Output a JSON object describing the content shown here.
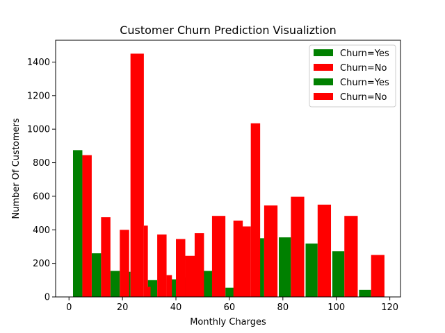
{
  "chart_data": {
    "type": "bar",
    "title": "Customer Churn Prediction Visualiztion",
    "xlabel": "Monthly Charges",
    "ylabel": "Number Of Customers",
    "xlim": [
      -5,
      124
    ],
    "ylim": [
      0,
      1530
    ],
    "xticks": [
      0,
      20,
      40,
      60,
      80,
      100,
      120
    ],
    "yticks": [
      0,
      200,
      400,
      600,
      800,
      1000,
      1200,
      1400
    ],
    "grid": false,
    "legend_position": "top-right",
    "series": [
      {
        "name": "Churn=Yes",
        "color": "#008000",
        "bins": [
          [
            1.5,
            5.0,
            875
          ],
          [
            8.5,
            12.0,
            260
          ],
          [
            15.5,
            19.0,
            155
          ],
          [
            19.5,
            23.0,
            150
          ],
          [
            29.5,
            33.0,
            100
          ],
          [
            37.5,
            41.0,
            105
          ],
          [
            41.5,
            45.0,
            118
          ],
          [
            49.5,
            54.0,
            155
          ],
          [
            58.5,
            63.0,
            55
          ],
          [
            68.5,
            73.0,
            350
          ],
          [
            78.5,
            83.0,
            355
          ],
          [
            88.5,
            93.0,
            318
          ],
          [
            98.5,
            103.0,
            272
          ],
          [
            108.5,
            113.0,
            42
          ]
        ]
      },
      {
        "name": "Churn=No",
        "color": "#ff0000",
        "bins": [
          [
            5.0,
            8.5,
            845
          ],
          [
            12.0,
            15.5,
            475
          ],
          [
            19.0,
            22.5,
            400
          ],
          [
            23.0,
            28.0,
            1450
          ],
          [
            28.0,
            29.5,
            425
          ],
          [
            29.0,
            30.5,
            60
          ],
          [
            33.0,
            36.5,
            372
          ],
          [
            36.5,
            38.5,
            130
          ],
          [
            40.0,
            43.5,
            345
          ],
          [
            43.5,
            47.5,
            245
          ],
          [
            47.0,
            50.5,
            380
          ],
          [
            53.5,
            58.5,
            483
          ],
          [
            61.5,
            65.0,
            455
          ],
          [
            64.5,
            68.0,
            420
          ],
          [
            68.0,
            71.5,
            1035
          ],
          [
            73.0,
            78.0,
            545
          ],
          [
            83.0,
            88.0,
            597
          ],
          [
            93.0,
            98.0,
            550
          ],
          [
            103.0,
            108.0,
            483
          ],
          [
            113.0,
            118.0,
            250
          ]
        ]
      }
    ],
    "legend": [
      {
        "label": "Churn=Yes",
        "color": "#008000"
      },
      {
        "label": "Churn=No",
        "color": "#ff0000"
      },
      {
        "label": "Churn=Yes",
        "color": "#008000"
      },
      {
        "label": "Churn=No",
        "color": "#ff0000"
      }
    ]
  }
}
